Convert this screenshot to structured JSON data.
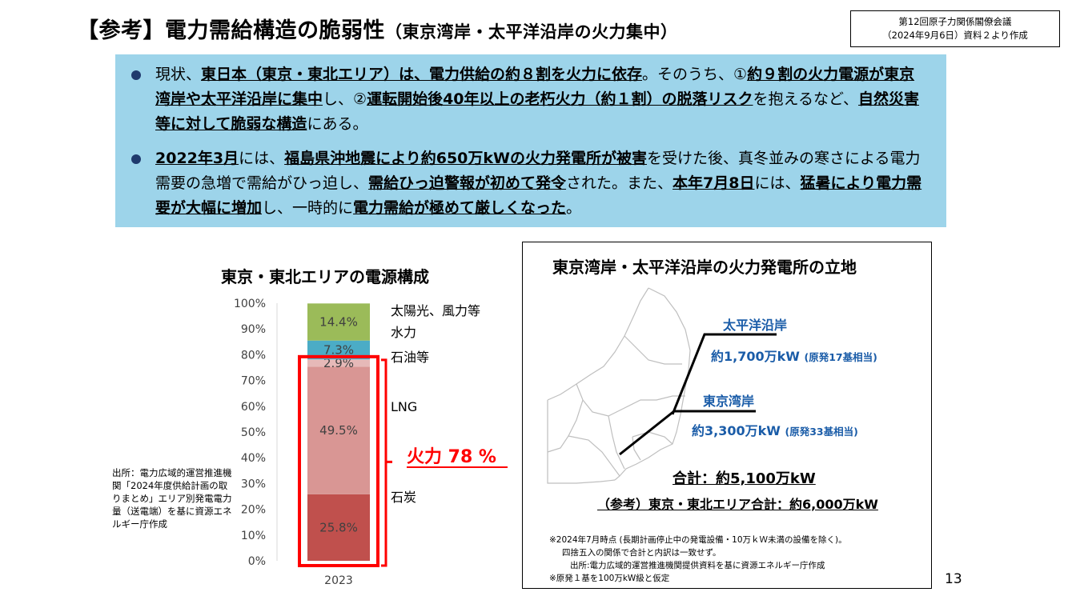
{
  "header": {
    "title_main": "【参考】電力需給構造の脆弱性",
    "title_sub": "（東京湾岸・太平洋沿岸の火力集中）",
    "source_line1": "第12回原子力関係閣僚会議",
    "source_line2": "（2024年9月6日）資料２より作成"
  },
  "summary": {
    "bullet1": [
      {
        "t": "現状、",
        "b": false
      },
      {
        "t": "東日本（東京・東北エリア）は、電力供給の約８割を火力に依存",
        "b": true
      },
      {
        "t": "。そのうち、①",
        "b": false
      },
      {
        "t": "約９割の火力電源が東京湾岸や太平洋沿岸に集中",
        "b": true
      },
      {
        "t": "し、②",
        "b": false
      },
      {
        "t": "運転開始後40年以上の老朽火力（約１割）の脱落リスク",
        "b": true
      },
      {
        "t": "を抱えるなど、",
        "b": false
      },
      {
        "t": "自然災害等に対して脆弱な構造",
        "b": true
      },
      {
        "t": "にある。",
        "b": false
      }
    ],
    "bullet2": [
      {
        "t": "2022年3月",
        "b": true
      },
      {
        "t": "には、",
        "b": false
      },
      {
        "t": "福島県沖地震により約650万kWの火力発電所が被害",
        "b": true
      },
      {
        "t": "を受けた後、真冬並みの寒さによる電力需要の急増で需給がひっ迫し、",
        "b": false
      },
      {
        "t": "需給ひっ迫警報が初めて発令",
        "b": true
      },
      {
        "t": "された。また、",
        "b": false
      },
      {
        "t": "本年7月8日",
        "b": true
      },
      {
        "t": "には、",
        "b": false
      },
      {
        "t": "猛暑により電力需要が大幅に増加",
        "b": true
      },
      {
        "t": "し、一時的に",
        "b": false
      },
      {
        "t": "電力需給が極めて厳しくなった",
        "b": true
      },
      {
        "t": "。",
        "b": false
      }
    ]
  },
  "chart_data": {
    "type": "bar",
    "title": "東京・東北エリアの電源構成",
    "categories": [
      "2023"
    ],
    "ylim": [
      0,
      100
    ],
    "yticks": [
      "0%",
      "10%",
      "20%",
      "30%",
      "40%",
      "50%",
      "60%",
      "70%",
      "80%",
      "90%",
      "100%"
    ],
    "series": [
      {
        "name": "石炭",
        "values": [
          25.8
        ],
        "label": "25.8%",
        "color": "#c0504d"
      },
      {
        "name": "LNG",
        "values": [
          49.5
        ],
        "label": "49.5%",
        "color": "#d99694"
      },
      {
        "name": "石油等",
        "values": [
          2.9
        ],
        "label": "2.9%",
        "color": "#e6b9b8"
      },
      {
        "name": "水力",
        "values": [
          7.3
        ],
        "label": "7.3%",
        "color": "#4bacc6"
      },
      {
        "name": "太陽光、風力等",
        "values": [
          14.4
        ],
        "label": "14.4%",
        "color": "#9bbb59"
      }
    ],
    "annotation": "火力 78 %",
    "annotation_value": 78,
    "annotation_color": "#ff0000"
  },
  "chart_source": "出所：電力広域的運営推進機関「2024年度供給計画の取りまとめ」エリア別発電電力量（送電端）を基に資源エネルギー庁作成",
  "map": {
    "title": "東京湾岸・太平洋沿岸の火力発電所の立地",
    "pacific_name": "太平洋沿岸",
    "pacific_value": "約1,700万kW",
    "pacific_note": "(原発17基相当)",
    "tokyo_name": "東京湾岸",
    "tokyo_value": "約3,300万kW",
    "tokyo_note": "(原発33基相当)",
    "total": "合計：約5,100万kW",
    "ref_total": "（参考）東京・東北エリア合計：約6,000万kW",
    "note1": "※2024年7月時点 (長期計画停止中の発電設備・10万ｋＷ未満の設備を除く)。",
    "note2": "四捨五入の関係で合計と内訳は一致せず。",
    "note3": "出所:電力広域的運営推進機関提供資料を基に資源エネルギー庁作成",
    "note4": "※原発１基を100万kW級と仮定"
  },
  "page_number": "13"
}
